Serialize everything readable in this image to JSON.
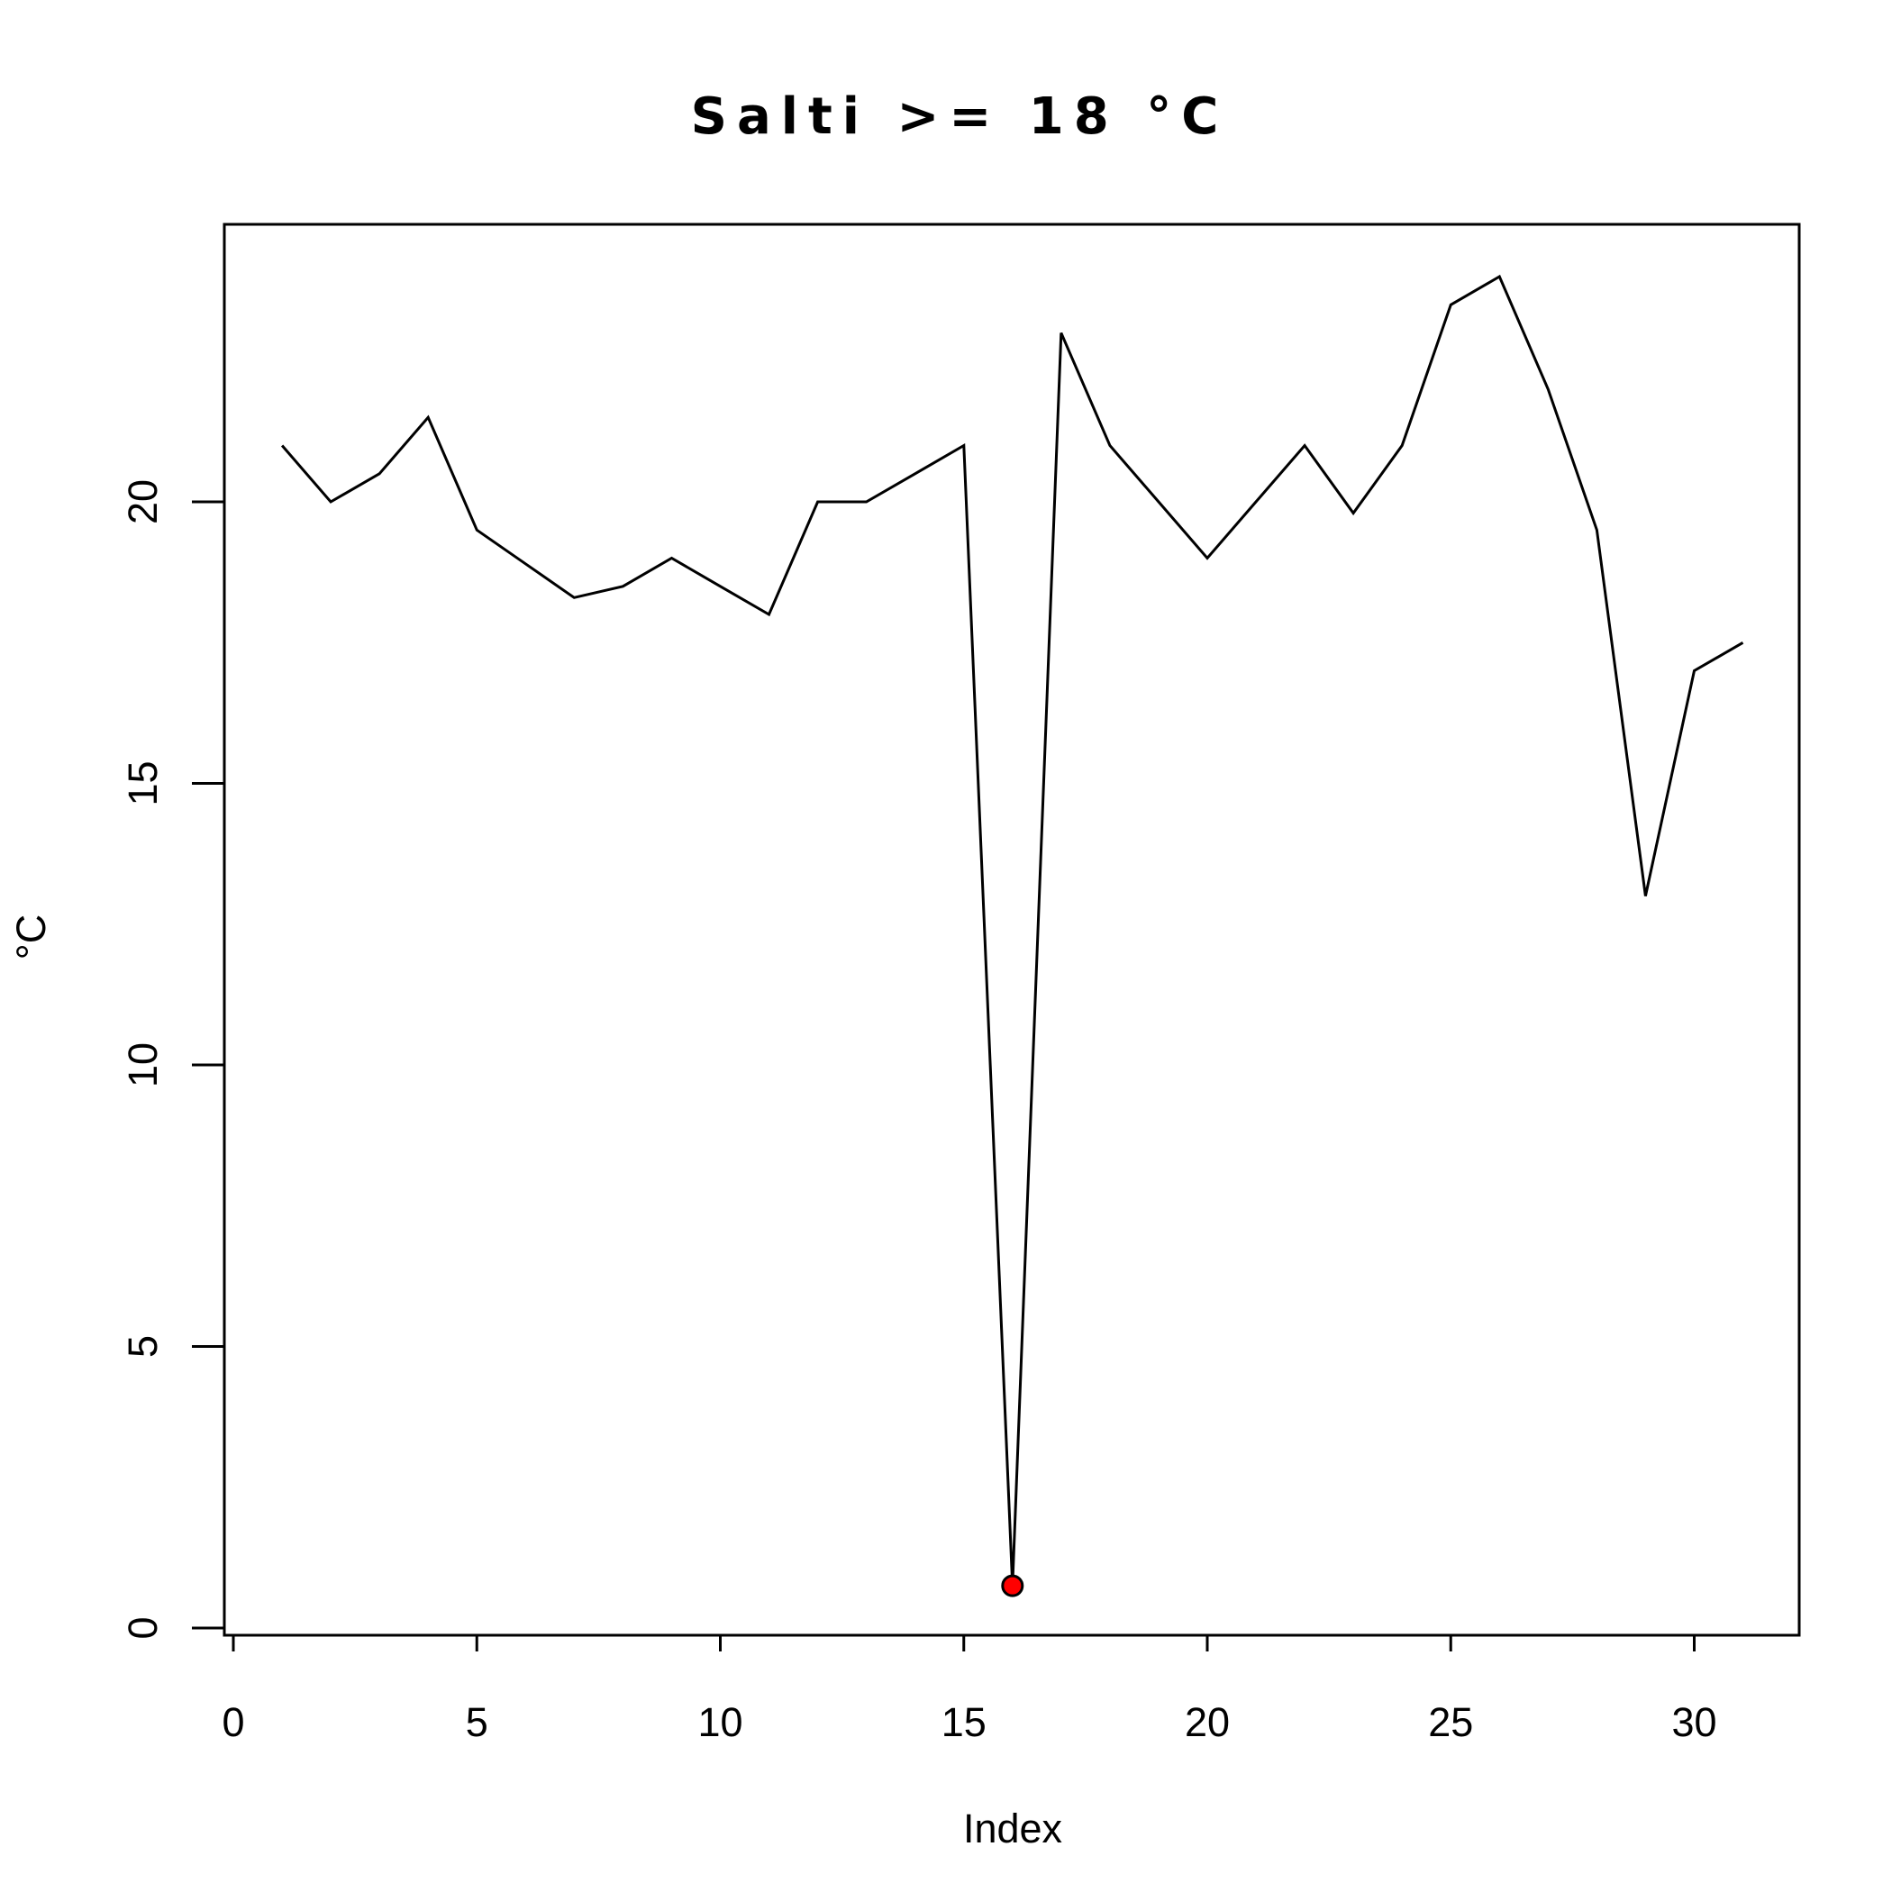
{
  "chart_data": {
    "type": "line",
    "title": "Salti >= 18 °C",
    "xlabel": "Index",
    "ylabel": "°C",
    "xlim": [
      0,
      31
    ],
    "ylim": [
      0,
      24.5
    ],
    "x_ticks": [
      0,
      5,
      10,
      15,
      20,
      25,
      30
    ],
    "y_ticks": [
      0,
      5,
      10,
      15,
      20
    ],
    "grid": false,
    "series": [
      {
        "x": [
          1,
          2,
          3,
          4,
          5,
          6,
          7,
          8,
          9,
          10,
          11,
          12,
          13,
          14,
          15,
          16,
          17,
          18,
          19,
          20,
          21,
          22,
          23,
          24,
          25,
          26,
          27,
          28,
          29,
          30,
          31
        ],
        "values": [
          21.0,
          20.0,
          20.5,
          21.5,
          19.5,
          18.9,
          18.3,
          18.5,
          19.0,
          18.5,
          18.0,
          20.0,
          20.0,
          20.5,
          21.0,
          0.75,
          23.0,
          21.0,
          20.0,
          19.0,
          20.0,
          21.0,
          19.8,
          21.0,
          23.5,
          24.0,
          22.0,
          19.5,
          13.0,
          17.0,
          17.5
        ]
      }
    ],
    "highlight_point": {
      "x": 16,
      "y": 0.75,
      "color": "#ff0000"
    }
  }
}
